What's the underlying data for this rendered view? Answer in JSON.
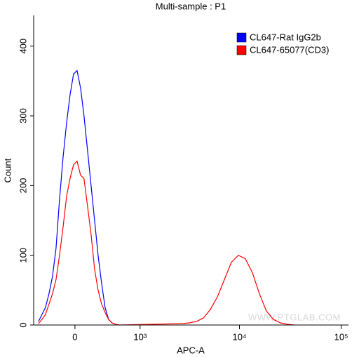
{
  "chart_data": {
    "type": "line",
    "title": "Multi-sample : P1",
    "xlabel": "APC-A",
    "ylabel": "Count",
    "xscale": "biexponential",
    "legend": "upper right",
    "watermark": "WWW.PTGLAB.COM",
    "xlim": [
      -520,
      118000
    ],
    "ylim": [
      0,
      444
    ],
    "xticks": [
      0,
      {
        "value": 1000,
        "label": "10³"
      },
      {
        "value": 10000,
        "label": "10⁴"
      },
      {
        "value": 100000,
        "label": "10⁵"
      }
    ],
    "yticks": [
      0,
      100,
      200,
      300,
      400
    ],
    "series": [
      {
        "name": "CL647-Rat IgG2b",
        "color": "#0000ff",
        "x": [
          -445,
          -395,
          -347,
          -300,
          -256,
          -213,
          -172,
          -132,
          -92,
          -54,
          -15,
          23,
          62,
          100,
          140,
          180,
          222,
          265,
          309,
          356,
          405,
          455,
          511,
          568
        ],
        "values": [
          5,
          15,
          25,
          45,
          70,
          110,
          180,
          240,
          290,
          330,
          360,
          365,
          340,
          300,
          250,
          200,
          150,
          100,
          60,
          25,
          8,
          3,
          1,
          0
        ]
      },
      {
        "name": "CL647-65077(CD3)",
        "color": "#ff0000",
        "x": [
          -445,
          -395,
          -347,
          -300,
          -256,
          -213,
          -172,
          -132,
          -92,
          -54,
          -15,
          23,
          62,
          100,
          140,
          180,
          222,
          265,
          309,
          356,
          405,
          455,
          511,
          568,
          2720,
          3190,
          3750,
          4400,
          5160,
          6050,
          7100,
          8320,
          9750,
          11430,
          13400,
          15700,
          18400,
          21600,
          25300,
          29600,
          34700
        ],
        "values": [
          2,
          8,
          15,
          30,
          45,
          65,
          100,
          140,
          185,
          210,
          230,
          235,
          215,
          210,
          170,
          130,
          80,
          50,
          30,
          18,
          8,
          3,
          1,
          0,
          2,
          3,
          5,
          10,
          22,
          40,
          65,
          90,
          100,
          95,
          75,
          45,
          20,
          8,
          3,
          1,
          0
        ]
      }
    ]
  }
}
